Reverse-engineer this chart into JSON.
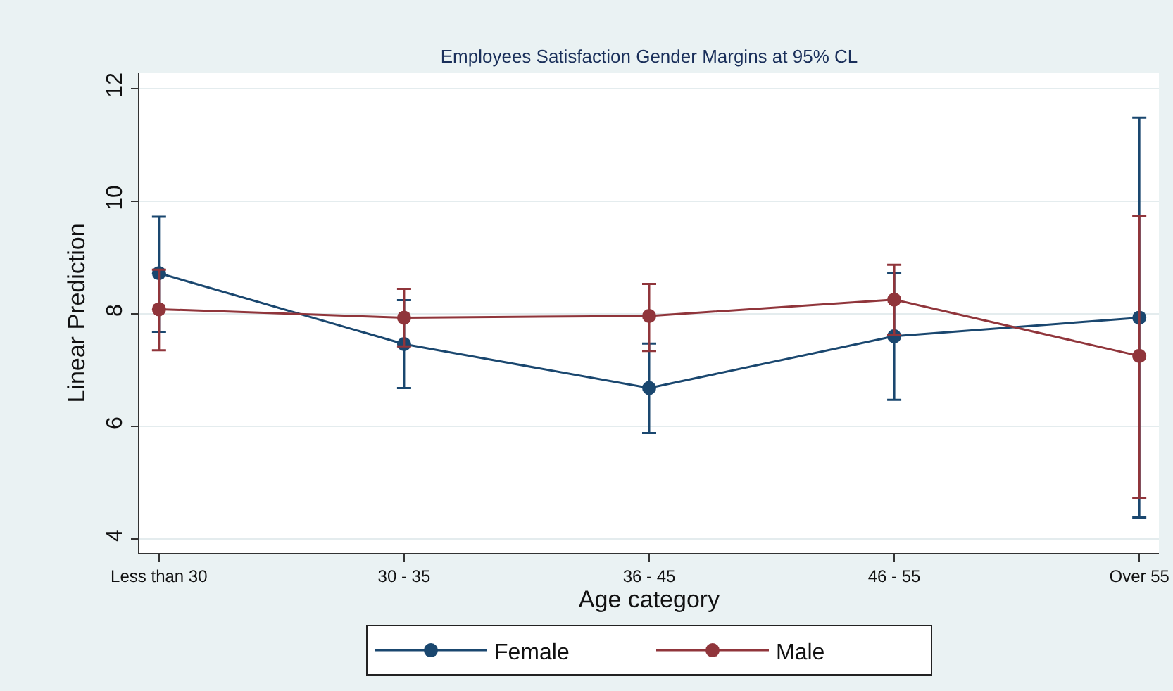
{
  "chart_data": {
    "type": "line",
    "title": "Employees Satisfaction Gender Margins at 95% CL",
    "xlabel": "Age category",
    "ylabel": "Linear Prediction",
    "categories": [
      "Less than 30",
      "30 - 35",
      "36 - 45",
      "46 - 55",
      "Over 55"
    ],
    "series": [
      {
        "name": "Female",
        "color": "#1a476f",
        "values": [
          8.72,
          7.46,
          6.68,
          7.6,
          7.93
        ],
        "errors": [
          [
            7.68,
            9.72
          ],
          [
            6.68,
            8.24
          ],
          [
            5.88,
            7.47
          ],
          [
            6.47,
            8.72
          ],
          [
            4.38,
            11.48
          ]
        ]
      },
      {
        "name": "Male",
        "color": "#90353b",
        "values": [
          8.08,
          7.93,
          7.96,
          8.25,
          7.25
        ],
        "errors": [
          [
            7.35,
            8.78
          ],
          [
            7.42,
            8.44
          ],
          [
            7.34,
            8.53
          ],
          [
            7.63,
            8.87
          ],
          [
            4.73,
            9.73
          ]
        ]
      }
    ],
    "ylim": [
      3.75,
      12.27
    ],
    "yticks": [
      4,
      6,
      8,
      10,
      12
    ],
    "grid": "y",
    "legend": "bottom",
    "marker": "circle",
    "line_style": "solid"
  }
}
